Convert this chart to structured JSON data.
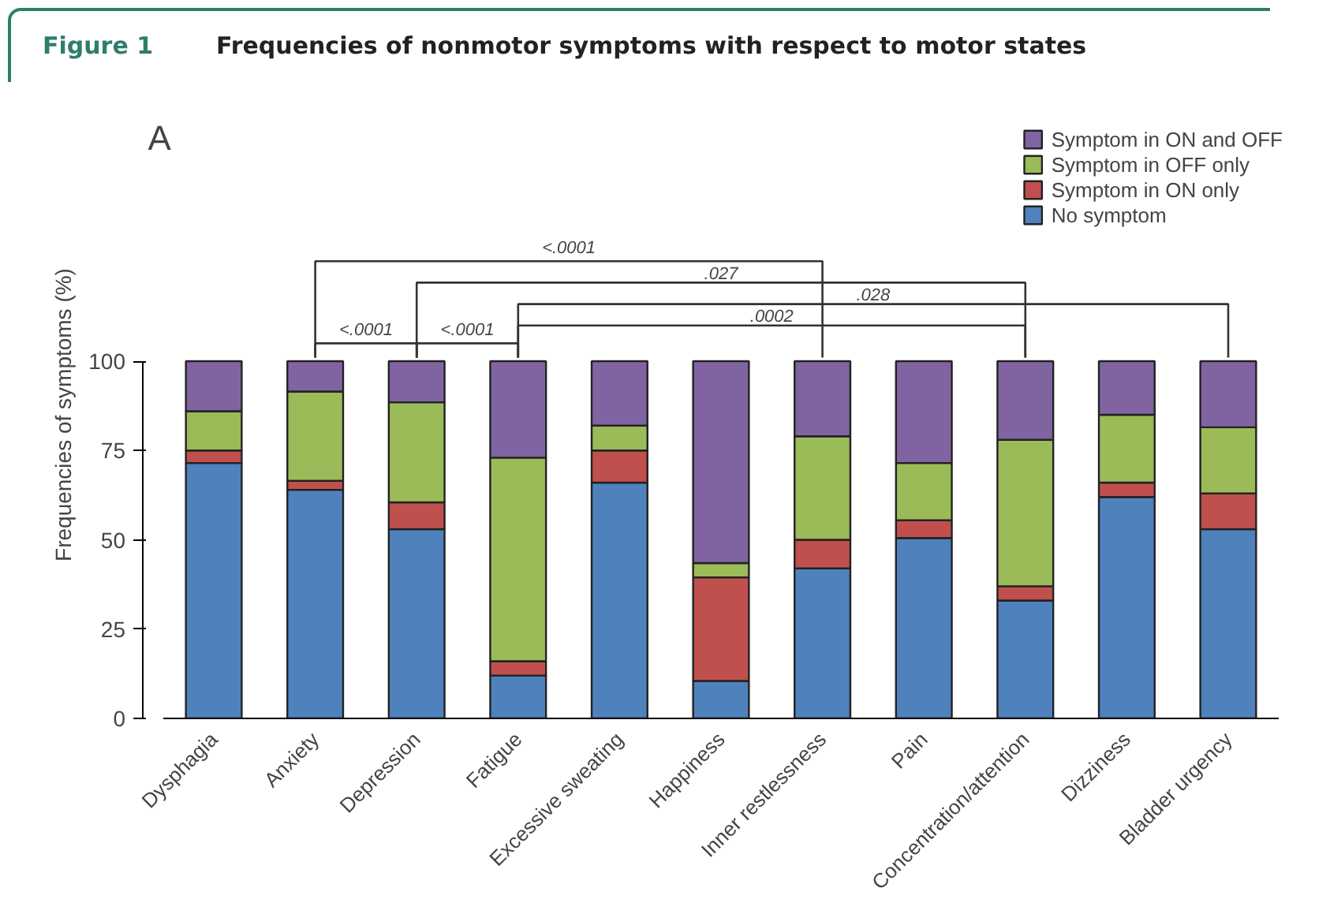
{
  "chart_data": {
    "type": "bar",
    "stacked": true,
    "title": "Frequencies of nonmotor symptoms with respect to motor states",
    "ylabel": "Frequencies of symptoms (%)",
    "categories": [
      "Dysphagia",
      "Anxiety",
      "Depression",
      "Fatigue",
      "Excessive sweating",
      "Happiness",
      "Inner restlessness",
      "Pain",
      "Concentration/attention",
      "Dizziness",
      "Bladder urgency"
    ],
    "series": [
      {
        "name": "No symptom",
        "color": "#4f81bd",
        "values": [
          71.5,
          64,
          53,
          12,
          66,
          10.5,
          42,
          50.5,
          33,
          62,
          53
        ]
      },
      {
        "name": "Symptom in ON only",
        "color": "#c0504d",
        "values": [
          3.5,
          2.5,
          7.5,
          4,
          9,
          29,
          8,
          5,
          4,
          4,
          10
        ]
      },
      {
        "name": "Symptom in OFF only",
        "color": "#9bbb59",
        "values": [
          11,
          25,
          28,
          57,
          7,
          4,
          29,
          16,
          41,
          19,
          18.5
        ]
      },
      {
        "name": "Symptom in ON and OFF",
        "color": "#8064a2",
        "values": [
          14,
          8.5,
          11.5,
          27,
          18,
          56.5,
          21,
          28.5,
          22,
          15,
          18.5
        ]
      }
    ],
    "ylim": [
      0,
      100
    ],
    "yticks": [
      0,
      25,
      50,
      75,
      100
    ],
    "grid": false,
    "legend": "top right",
    "annotations": [
      "Figure 1",
      "A",
      "<.0001",
      "<.0001",
      "<.0001",
      ".027",
      ".028",
      ".0002"
    ]
  }
}
